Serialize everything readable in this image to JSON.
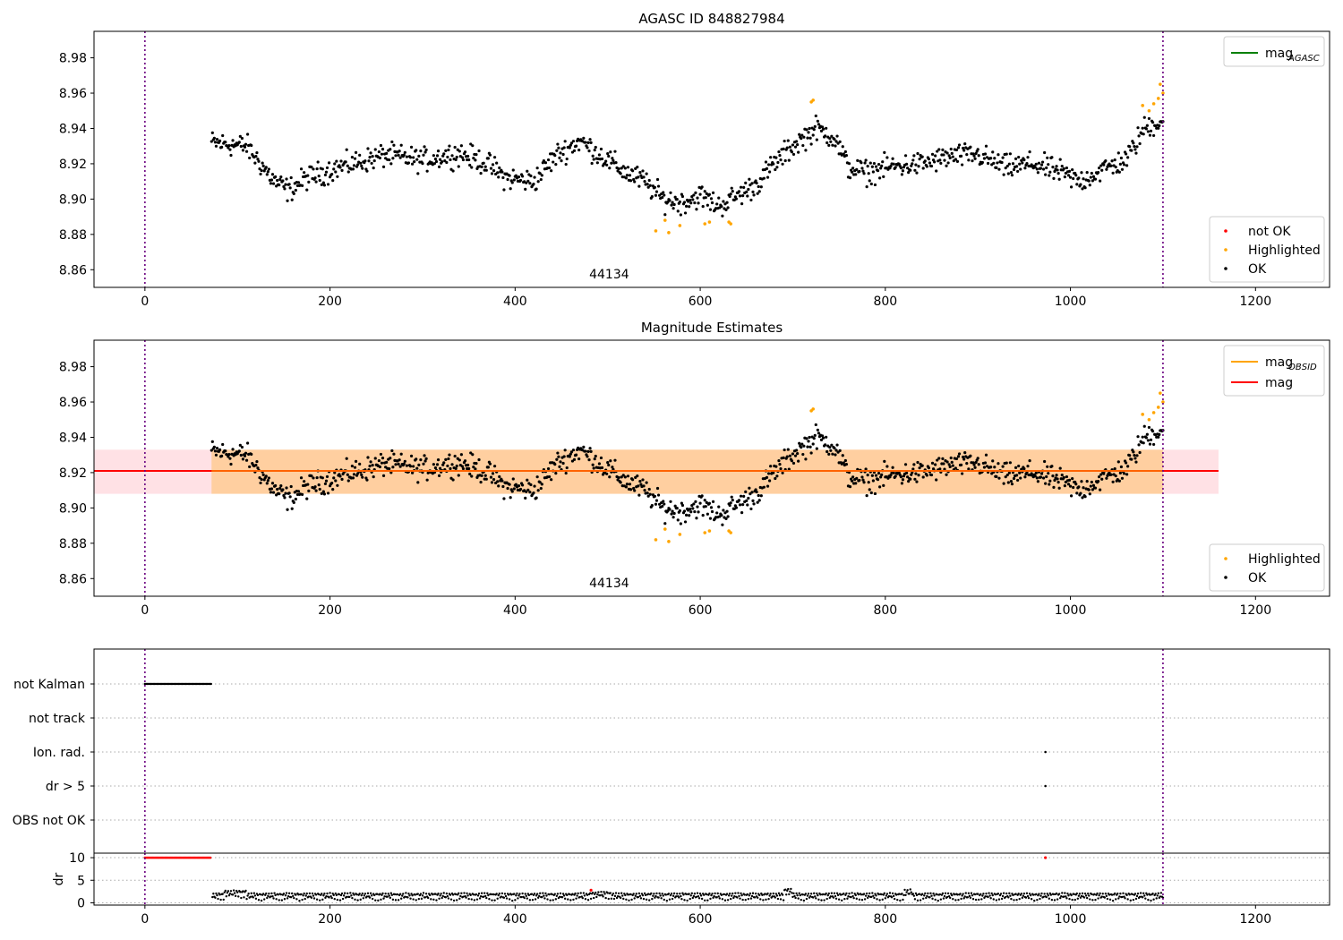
{
  "chart_data": [
    {
      "type": "scatter",
      "title": "AGASC ID 848827984",
      "xlim": [
        -55,
        1280
      ],
      "ylim": [
        8.85,
        8.995
      ],
      "xticks": [
        0,
        200,
        400,
        600,
        800,
        1000,
        1200
      ],
      "yticks": [
        8.86,
        8.88,
        8.9,
        8.92,
        8.94,
        8.96,
        8.98
      ],
      "grid": false,
      "vlines": [
        0,
        1100
      ],
      "obsid_label": {
        "text": "44134",
        "x": 550
      },
      "line_legend": {
        "placement": "top-right",
        "entries": [
          {
            "name": "mag",
            "sub": "AGASC",
            "color": "#008000"
          }
        ]
      },
      "marker_legend": {
        "placement": "bottom-right",
        "entries": [
          {
            "name": "not OK",
            "color": "#ff0000"
          },
          {
            "name": "Highlighted",
            "color": "#ffa500"
          },
          {
            "name": "OK",
            "color": "#000000"
          }
        ]
      },
      "series": [
        {
          "name": "OK",
          "color": "#000000",
          "profile": [
            [
              72,
              8.932
            ],
            [
              110,
              8.93
            ],
            [
              140,
              8.91
            ],
            [
              155,
              8.905
            ],
            [
              175,
              8.912
            ],
            [
              210,
              8.918
            ],
            [
              260,
              8.925
            ],
            [
              300,
              8.922
            ],
            [
              340,
              8.926
            ],
            [
              370,
              8.92
            ],
            [
              390,
              8.912
            ],
            [
              420,
              8.91
            ],
            [
              445,
              8.925
            ],
            [
              470,
              8.933
            ],
            [
              500,
              8.922
            ],
            [
              520,
              8.915
            ],
            [
              540,
              8.91
            ],
            [
              560,
              8.9
            ],
            [
              580,
              8.898
            ],
            [
              600,
              8.902
            ],
            [
              620,
              8.896
            ],
            [
              640,
              8.902
            ],
            [
              660,
              8.908
            ],
            [
              680,
              8.92
            ],
            [
              700,
              8.93
            ],
            [
              725,
              8.94
            ],
            [
              745,
              8.935
            ],
            [
              760,
              8.918
            ],
            [
              780,
              8.915
            ],
            [
              800,
              8.918
            ],
            [
              840,
              8.92
            ],
            [
              870,
              8.924
            ],
            [
              900,
              8.925
            ],
            [
              930,
              8.918
            ],
            [
              960,
              8.92
            ],
            [
              990,
              8.915
            ],
            [
              1010,
              8.91
            ],
            [
              1040,
              8.918
            ],
            [
              1060,
              8.922
            ],
            [
              1080,
              8.94
            ],
            [
              1100,
              8.945
            ]
          ],
          "noise": 0.006
        },
        {
          "name": "Highlighted",
          "color": "#ffa500",
          "points": [
            [
              552,
              8.882
            ],
            [
              562,
              8.888
            ],
            [
              566,
              8.881
            ],
            [
              578,
              8.885
            ],
            [
              605,
              8.886
            ],
            [
              610,
              8.887
            ],
            [
              631,
              8.887
            ],
            [
              633,
              8.886
            ],
            [
              720,
              8.955
            ],
            [
              722,
              8.956
            ],
            [
              1078,
              8.953
            ],
            [
              1085,
              8.95
            ],
            [
              1090,
              8.954
            ],
            [
              1095,
              8.957
            ],
            [
              1097,
              8.965
            ],
            [
              1100,
              8.96
            ]
          ]
        }
      ]
    },
    {
      "type": "scatter",
      "title": "Magnitude Estimates",
      "xlim": [
        -55,
        1280
      ],
      "ylim": [
        8.85,
        8.995
      ],
      "xticks": [
        0,
        200,
        400,
        600,
        800,
        1000,
        1200
      ],
      "yticks": [
        8.86,
        8.88,
        8.9,
        8.92,
        8.94,
        8.96,
        8.98
      ],
      "grid": false,
      "vlines": [
        0,
        1100
      ],
      "obsid_label": {
        "text": "44134",
        "x": 550
      },
      "mag": 8.921,
      "band_obsid": {
        "x": [
          72,
          1100
        ],
        "y": [
          8.908,
          8.933
        ],
        "color": "#ffa500"
      },
      "band_mag": {
        "x": [
          -55,
          1160
        ],
        "y": [
          8.908,
          8.933
        ],
        "color": "#ff9aa8"
      },
      "line_legend": {
        "placement": "top-right",
        "entries": [
          {
            "name": "mag",
            "sub": "OBSID",
            "color": "#ffa500"
          },
          {
            "name": "mag",
            "sub": "",
            "color": "#ff0000"
          }
        ]
      },
      "marker_legend": {
        "placement": "bottom-right",
        "entries": [
          {
            "name": "Highlighted",
            "color": "#ffa500"
          },
          {
            "name": "OK",
            "color": "#000000"
          }
        ]
      }
    },
    {
      "type": "scatter",
      "subtype": "flags",
      "categories": [
        "not Kalman",
        "not track",
        "Ion. rad.",
        "dr > 5",
        "OBS not OK"
      ],
      "xlim": [
        -55,
        1280
      ],
      "flags": [
        {
          "category": "not Kalman",
          "x_range": [
            0,
            72
          ]
        },
        {
          "category": "Ion. rad.",
          "x": [
            973
          ]
        },
        {
          "category": "dr > 5",
          "x": [
            973
          ]
        }
      ]
    },
    {
      "type": "scatter",
      "ylabel": "dr",
      "xlim": [
        -55,
        1280
      ],
      "ylim": [
        -0.5,
        11
      ],
      "yticks": [
        0,
        5,
        10
      ],
      "xticks": [
        0,
        200,
        400,
        600,
        800,
        1000,
        1200
      ],
      "capped": {
        "x_range": [
          0,
          72
        ],
        "y": 10,
        "color": "#ff0000"
      },
      "extra_red": [
        [
          482,
          2.8
        ],
        [
          973,
          10
        ]
      ],
      "ok_color": "#000000"
    }
  ]
}
